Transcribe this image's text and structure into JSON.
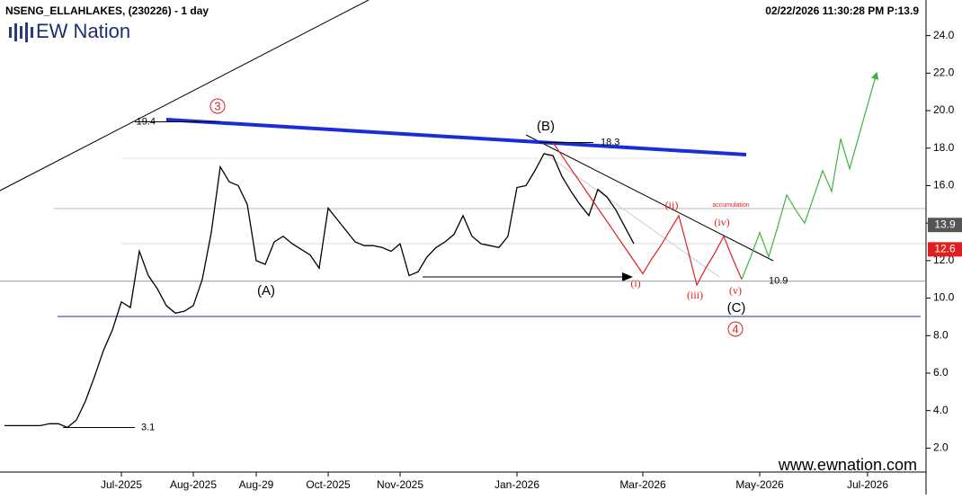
{
  "header": {
    "symbol": "NSENG_ELLAHLAKES, (230226) - 1 day",
    "timestamp": "02/22/2026 11:30:28 PM  P:13.9",
    "logo": "EW Nation",
    "website": "www.ewnation.com"
  },
  "chart_data": {
    "type": "line",
    "categories": [
      null,
      null,
      null,
      null,
      null,
      null,
      null,
      null,
      null,
      null,
      null,
      null,
      null,
      "Jul-2025",
      null,
      null,
      null,
      null,
      null,
      null,
      null,
      "Aug-2025",
      null,
      null,
      null,
      null,
      null,
      null,
      "Aug-29",
      null,
      null,
      null,
      null,
      null,
      null,
      null,
      "Oct-2025",
      null,
      null,
      null,
      null,
      null,
      null,
      null,
      "Nov-2025",
      null,
      null,
      null,
      null,
      null,
      null,
      null,
      null,
      null,
      null,
      null,
      null,
      "Jan-2026",
      null,
      null,
      null,
      null,
      null,
      null,
      null,
      null,
      null,
      null,
      null,
      null,
      null,
      "Mar-2026",
      null,
      null,
      null,
      null,
      null,
      null,
      null,
      null,
      null,
      null,
      null,
      null,
      "May-2026",
      null,
      null,
      null,
      null,
      null,
      null,
      null,
      null,
      null,
      null,
      null,
      "Jul-2026",
      null,
      null,
      null,
      null,
      null,
      null
    ],
    "series": [
      {
        "color": "#000000",
        "values": [
          3.2,
          3.2,
          3.2,
          3.2,
          3.2,
          3.3,
          3.3,
          3.1,
          3.5,
          4.5,
          5.8,
          7.2,
          8.3,
          9.8,
          9.5,
          12.5,
          11.2,
          10.5,
          9.6,
          9.2,
          9.3,
          9.6,
          11.0,
          13.5,
          17.0,
          16.2,
          16.0,
          15.0,
          12.0,
          11.8,
          13.0,
          13.3,
          12.9,
          12.6,
          12.3,
          11.6,
          14.8,
          14.2,
          13.6,
          13.0,
          12.8,
          12.8,
          12.7,
          12.5,
          12.9,
          11.2,
          11.4,
          12.2,
          12.7,
          13.0,
          13.4,
          14.4,
          13.3,
          12.9,
          12.8,
          12.7,
          13.3,
          15.9,
          16.0,
          16.8,
          17.7,
          17.6,
          16.5,
          15.7,
          15.0,
          14.4,
          15.8,
          15.4,
          14.7,
          13.8,
          12.9,
          null,
          null,
          null,
          null,
          null,
          null,
          null,
          null,
          null,
          null,
          null,
          null,
          null,
          null,
          null,
          null,
          null,
          null,
          null,
          null,
          null,
          null,
          null,
          null,
          null,
          null,
          null,
          null,
          null,
          null,
          null,
          null
        ]
      },
      {
        "color": "#e02020",
        "values": [
          null,
          null,
          null,
          null,
          null,
          null,
          null,
          null,
          null,
          null,
          null,
          null,
          null,
          null,
          null,
          null,
          null,
          null,
          null,
          null,
          null,
          null,
          null,
          null,
          null,
          null,
          null,
          null,
          null,
          null,
          null,
          null,
          null,
          null,
          null,
          null,
          null,
          null,
          null,
          null,
          null,
          null,
          null,
          null,
          null,
          null,
          null,
          null,
          null,
          null,
          null,
          null,
          null,
          null,
          null,
          null,
          null,
          null,
          null,
          null,
          null,
          18.3,
          17.6,
          16.9,
          16.2,
          15.5,
          14.8,
          14.1,
          13.4,
          12.7,
          12.0,
          11.3,
          12.1,
          12.8,
          13.6,
          14.4,
          12.6,
          10.7,
          11.6,
          12.4,
          13.3,
          12.1,
          11.0,
          null,
          null,
          null,
          null,
          null,
          null,
          null,
          null,
          null,
          null,
          null,
          null,
          null,
          null,
          null,
          null,
          null,
          null,
          null,
          null
        ]
      },
      {
        "color": "#3cb43c",
        "values": [
          null,
          null,
          null,
          null,
          null,
          null,
          null,
          null,
          null,
          null,
          null,
          null,
          null,
          null,
          null,
          null,
          null,
          null,
          null,
          null,
          null,
          null,
          null,
          null,
          null,
          null,
          null,
          null,
          null,
          null,
          null,
          null,
          null,
          null,
          null,
          null,
          null,
          null,
          null,
          null,
          null,
          null,
          null,
          null,
          null,
          null,
          null,
          null,
          null,
          null,
          null,
          null,
          null,
          null,
          null,
          null,
          null,
          null,
          null,
          null,
          null,
          null,
          null,
          null,
          null,
          null,
          null,
          null,
          null,
          null,
          null,
          null,
          null,
          null,
          null,
          null,
          null,
          null,
          null,
          null,
          null,
          null,
          11.0,
          12.2,
          13.5,
          12.2,
          13.8,
          15.5,
          14.7,
          14.0,
          15.4,
          16.8,
          15.7,
          18.5,
          16.9,
          18.6,
          20.3,
          22.0,
          null,
          null,
          null,
          null,
          null
        ]
      }
    ],
    "ylim": [
      1.3,
      25.9
    ],
    "yticks": [
      {
        "value": 2,
        "label": "2.0"
      },
      {
        "value": 4,
        "label": "4.0"
      },
      {
        "value": 6,
        "label": "6.0"
      },
      {
        "value": 8,
        "label": "8.0"
      },
      {
        "value": 10,
        "label": "10.0"
      },
      {
        "value": 12,
        "label": "12.0"
      },
      {
        "value": 14,
        "label": "14.0"
      },
      {
        "value": 16,
        "label": "16.0"
      },
      {
        "value": 18,
        "label": "18.0"
      },
      {
        "value": 20,
        "label": "20.0"
      },
      {
        "value": 22,
        "label": "22.0"
      },
      {
        "value": 24,
        "label": "24.0"
      }
    ],
    "levels": [
      19.4,
      18.3,
      10.9,
      3.1
    ],
    "price_tags": [
      {
        "value": 13.9,
        "color": "#555555"
      },
      {
        "value": 12.6,
        "color": "#e02020"
      }
    ],
    "annotations": {
      "A": "(A)",
      "B": "(B)",
      "C": "(C)",
      "w3": "3",
      "w4": "4",
      "i": "(i)",
      "ii": "(ii)",
      "iii": "(iii)",
      "iv": "(iv)",
      "v": "(v)",
      "accumulation": "accumulation"
    }
  }
}
